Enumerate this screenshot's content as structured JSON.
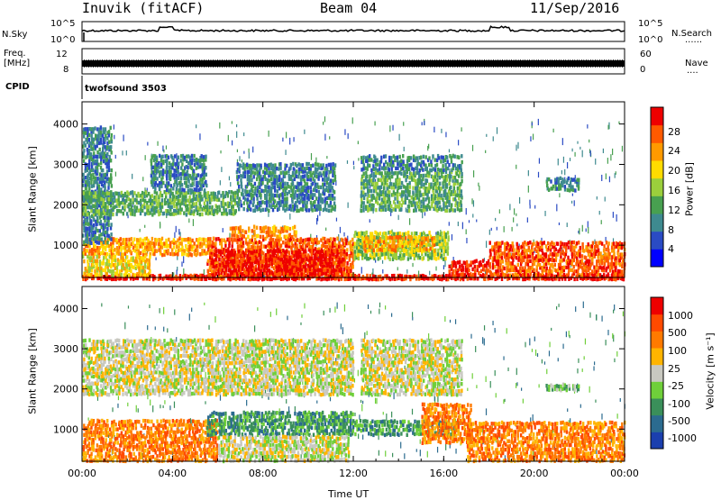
{
  "header": {
    "station": "Inuvik (fitACF)",
    "beam": "Beam 04",
    "date": "11/Sep/2016"
  },
  "top_panels": {
    "nsky_label": "N.Sky",
    "nsearch_label": "N.Search",
    "nsky_ticks": [
      "10^5",
      "10^0"
    ],
    "nsearch_ticks": [
      "10^5",
      "10^0"
    ],
    "freq_label_1": "Freq.",
    "freq_label_2": "[MHz]",
    "freq_ticks": [
      "12",
      "8"
    ],
    "nave_label": "Nave",
    "nave_ticks": [
      "60",
      "0"
    ],
    "cpid_label": "CPID",
    "cpid_value": "twofsound 3503",
    "dotted_marker": "......",
    "dotted_marker_short": "...."
  },
  "chart_data": [
    {
      "type": "heatmap",
      "title": "",
      "xlabel": "Time UT",
      "ylabel": "Slant Range [km]",
      "xlim": [
        0,
        24
      ],
      "ylim": [
        200,
        4550
      ],
      "x_ticks": [
        "00:00",
        "04:00",
        "08:00",
        "12:00",
        "16:00",
        "20:00",
        "00:00"
      ],
      "y_ticks": [
        1000,
        2000,
        3000,
        4000
      ],
      "colorbar": {
        "label": "Power [dB]",
        "ticks": [
          "4",
          "8",
          "12",
          "16",
          "20",
          "24",
          "28"
        ],
        "colors": [
          "#0000ff",
          "#2a4bc4",
          "#3e8a8f",
          "#48a050",
          "#9bcf3c",
          "#ffdc00",
          "#ff9a00",
          "#ff5a00",
          "#ee0000"
        ]
      },
      "regions": [
        {
          "t": [
            0.0,
            24.0
          ],
          "r": [
            200,
            320
          ],
          "level": 8
        },
        {
          "t": [
            0.0,
            5.5
          ],
          "r": [
            800,
            1250
          ],
          "level": 6
        },
        {
          "t": [
            0.0,
            3.0
          ],
          "r": [
            300,
            800
          ],
          "level": 5
        },
        {
          "t": [
            5.5,
            12.0
          ],
          "r": [
            300,
            1250
          ],
          "level": 7
        },
        {
          "t": [
            5.8,
            11.6
          ],
          "r": [
            320,
            950
          ],
          "level": 8
        },
        {
          "t": [
            6.5,
            9.5
          ],
          "r": [
            1250,
            1550
          ],
          "level": 6
        },
        {
          "t": [
            12.0,
            16.2
          ],
          "r": [
            700,
            1400
          ],
          "level": 4
        },
        {
          "t": [
            12.4,
            15.6
          ],
          "r": [
            900,
            1300
          ],
          "level": 6
        },
        {
          "t": [
            16.2,
            18.0
          ],
          "r": [
            300,
            700
          ],
          "level": 8
        },
        {
          "t": [
            18.0,
            24.0
          ],
          "r": [
            300,
            1150
          ],
          "level": 7
        },
        {
          "t": [
            0.0,
            1.3
          ],
          "r": [
            1100,
            4000
          ],
          "level": 2
        },
        {
          "t": [
            0.0,
            6.8
          ],
          "r": [
            1800,
            2400
          ],
          "level": 3
        },
        {
          "t": [
            3.0,
            5.5
          ],
          "r": [
            2400,
            3300
          ],
          "level": 2
        },
        {
          "t": [
            6.8,
            11.2
          ],
          "r": [
            1900,
            3100
          ],
          "level": 2
        },
        {
          "t": [
            12.3,
            16.8
          ],
          "r": [
            1900,
            2900
          ],
          "level": 3
        },
        {
          "t": [
            12.3,
            16.8
          ],
          "r": [
            2900,
            3300
          ],
          "level": 2
        },
        {
          "t": [
            20.5,
            22.0
          ],
          "r": [
            2400,
            2750
          ],
          "level": 2
        }
      ]
    },
    {
      "type": "heatmap",
      "title": "",
      "xlabel": "Time UT",
      "ylabel": "Slant Range [km]",
      "xlim": [
        0,
        24
      ],
      "ylim": [
        200,
        4550
      ],
      "x_ticks": [
        "00:00",
        "04:00",
        "08:00",
        "12:00",
        "16:00",
        "20:00",
        "00:00"
      ],
      "y_ticks": [
        1000,
        2000,
        3000,
        4000
      ],
      "colorbar": {
        "label": "Velocity [m s⁻¹]",
        "ticks": [
          "1000",
          "500",
          "100",
          "25",
          "-25",
          "-100",
          "-500",
          "-1000"
        ],
        "colors": [
          "#1b3fae",
          "#2b6b8f",
          "#3a8f5a",
          "#6fcf3a",
          "#c8c8c0",
          "#ffb400",
          "#ff7a00",
          "#ff4a00",
          "#ee0000"
        ]
      },
      "regions": [
        {
          "t": [
            0.0,
            6.0
          ],
          "r": [
            250,
            1300
          ],
          "level": 6
        },
        {
          "t": [
            5.5,
            12.0
          ],
          "r": [
            900,
            1500
          ],
          "level": 2
        },
        {
          "t": [
            6.0,
            11.8
          ],
          "r": [
            250,
            900
          ],
          "level": 4
        },
        {
          "t": [
            12.0,
            16.6
          ],
          "r": [
            900,
            1300
          ],
          "level": 2
        },
        {
          "t": [
            15.0,
            17.2
          ],
          "r": [
            700,
            1700
          ],
          "level": 6
        },
        {
          "t": [
            17.0,
            24.0
          ],
          "r": [
            250,
            1250
          ],
          "level": 6
        },
        {
          "t": [
            0.0,
            12.0
          ],
          "r": [
            1900,
            3300
          ],
          "level": 4
        },
        {
          "t": [
            12.3,
            16.8
          ],
          "r": [
            1900,
            3300
          ],
          "level": 4
        },
        {
          "t": [
            20.5,
            22.0
          ],
          "r": [
            2000,
            2200
          ],
          "level": 3
        }
      ]
    }
  ],
  "colors": {
    "axis": "#000000",
    "trace": "#000000"
  }
}
